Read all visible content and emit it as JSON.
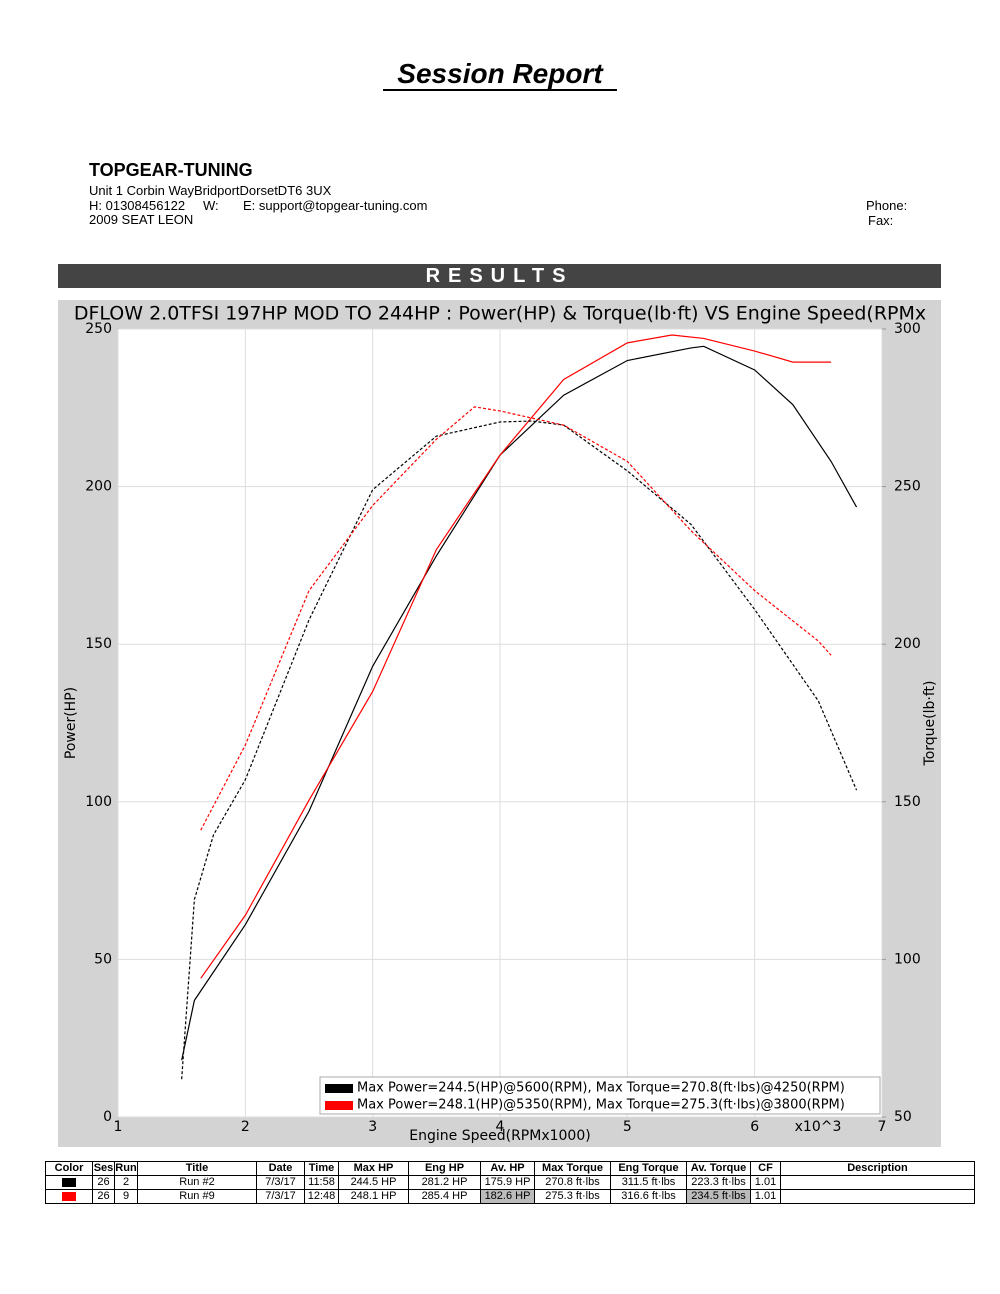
{
  "header": {
    "title": "Session Report",
    "company": "TOPGEAR-TUNING",
    "address": "Unit 1 Corbin WayBridportDorsetDT6 3UX",
    "home": "H:  01308456122",
    "work": "W:",
    "email": "E:  support@topgear-tuning.com",
    "vehicle": "2009 SEAT LEON",
    "phone": "Phone:",
    "fax": "Fax:"
  },
  "results_bar": "RESULTS",
  "chart_data": {
    "type": "line",
    "title": "DFLOW 2.0TFSI 197HP MOD TO 244HP : Power(HP) & Torque(lb·ft) VS Engine Speed(RPMx",
    "x_label": "Engine Speed(RPMx1000)",
    "y_label": "Power(HP)",
    "y2_label": "Torque(lb·ft)",
    "x_multiplier": "x10^3",
    "xlim": [
      1,
      7
    ],
    "xticks": [
      1,
      2,
      3,
      4,
      5,
      6,
      7
    ],
    "ylim": [
      0,
      250
    ],
    "yticks": [
      0,
      50,
      100,
      150,
      200,
      250
    ],
    "y2lim": [
      50,
      300
    ],
    "y2ticks": [
      50,
      100,
      150,
      200,
      250,
      300
    ],
    "grid": true,
    "legend": "bottom-right",
    "series": [
      {
        "name": "Max Power=244.5(HP)@5600(RPM), Max Torque=270.8(ft·lbs)@4250(RPM)",
        "color": "#000000",
        "dash": false,
        "x": [
          1.5,
          1.6,
          1.75,
          2.0,
          2.5,
          3.0,
          3.5,
          4.0,
          4.5,
          5.0,
          5.5,
          5.6,
          6.0,
          6.3,
          6.6,
          6.8
        ],
        "values": [
          18,
          37,
          46,
          61,
          97,
          143,
          178,
          210,
          229,
          240,
          244,
          244.5,
          237,
          226,
          208,
          193.5
        ]
      },
      {
        "name": "Max Power=248.1(HP)@5350(RPM), Max Torque=275.3(ft·lbs)@3800(RPM)",
        "color": "#ff0000",
        "dash": false,
        "x": [
          1.65,
          2.0,
          2.5,
          3.0,
          3.5,
          4.0,
          4.5,
          5.0,
          5.35,
          5.6,
          6.0,
          6.3,
          6.6
        ],
        "values": [
          44,
          64,
          100.5,
          135,
          180,
          210,
          234,
          245.6,
          248.1,
          247,
          243,
          239.5,
          239.5
        ]
      },
      {
        "color": "#000000",
        "dash": true,
        "axis": "y2",
        "x": [
          1.5,
          1.6,
          1.75,
          2.0,
          2.5,
          3.0,
          3.5,
          4.0,
          4.25,
          4.5,
          5.0,
          5.5,
          6.0,
          6.5,
          6.8
        ],
        "values": [
          62,
          119,
          139.5,
          157,
          207.7,
          249,
          266,
          270.5,
          270.8,
          269.5,
          255,
          238,
          211,
          182,
          153.7
        ]
      },
      {
        "color": "#ff0000",
        "dash": true,
        "axis": "y2",
        "x": [
          1.65,
          2.0,
          2.5,
          3.0,
          3.5,
          3.8,
          4.0,
          4.5,
          5.0,
          5.5,
          6.0,
          6.5,
          6.6
        ],
        "values": [
          141,
          168,
          217,
          244,
          265,
          275.3,
          274,
          269.5,
          258,
          236,
          217,
          201,
          196.5
        ]
      }
    ]
  },
  "table": {
    "columns": [
      "Color",
      "Ses",
      "Run",
      "Title",
      "Date",
      "Time",
      "Max HP",
      "Eng HP",
      "Av. HP",
      "Max Torque",
      "Eng Torque",
      "Av. Torque",
      "CF",
      "Description"
    ],
    "rows": [
      {
        "color": "#000000",
        "cells": [
          "26",
          "2",
          "Run #2",
          "7/3/17",
          "11:58",
          "244.5 HP",
          "281.2 HP",
          "175.9 HP",
          "270.8 ft·lbs",
          "311.5 ft·lbs",
          "223.3 ft·lbs",
          "1.01"
        ]
      },
      {
        "color": "#ff0000",
        "highlighted_columns": [
          7,
          10
        ],
        "cells": [
          "26",
          "9",
          "Run #9",
          "7/3/17",
          "12:48",
          "248.1 HP",
          "285.4 HP",
          "182.6 HP",
          "275.3 ft·lbs",
          "316.6 ft·lbs",
          "234.5 ft·lbs",
          "1.01"
        ]
      }
    ]
  }
}
